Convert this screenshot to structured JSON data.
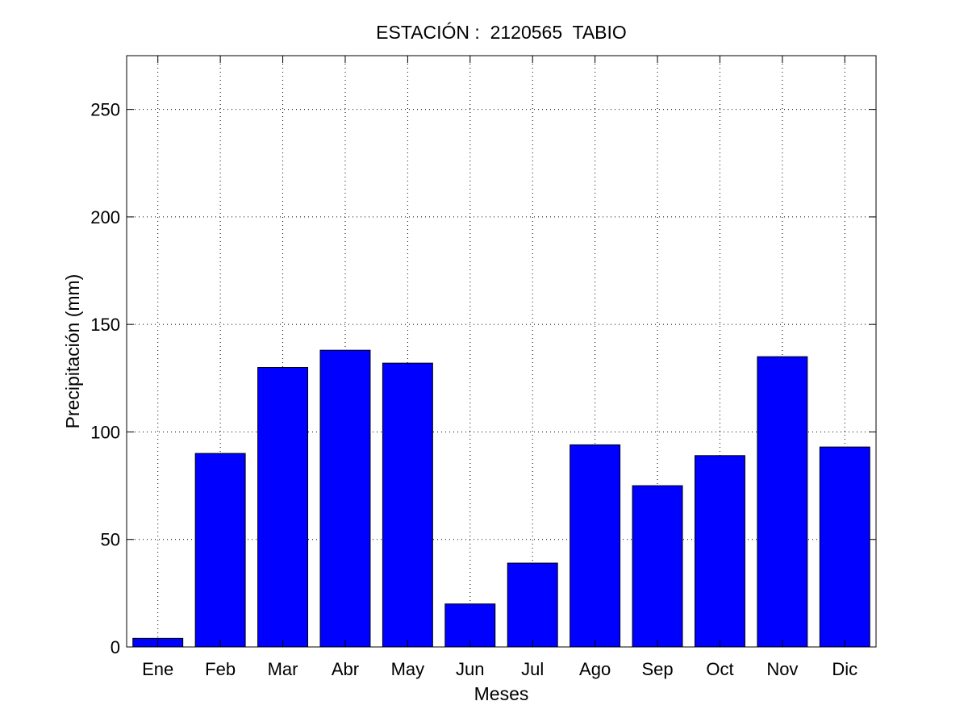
{
  "chart_data": {
    "type": "bar",
    "title": "ESTACIÓN :  2120565  TABIO",
    "xlabel": "Meses",
    "ylabel": "Precipitación (mm)",
    "categories": [
      "Ene",
      "Feb",
      "Mar",
      "Abr",
      "May",
      "Jun",
      "Jul",
      "Ago",
      "Sep",
      "Oct",
      "Nov",
      "Dic"
    ],
    "values": [
      4,
      90,
      130,
      138,
      132,
      20,
      39,
      94,
      75,
      89,
      135,
      93
    ],
    "ylim": [
      0,
      275
    ],
    "yticks": [
      0,
      50,
      100,
      150,
      200,
      250
    ],
    "grid": true,
    "bar_color": "#0000ff",
    "edge_color": "#000000"
  }
}
